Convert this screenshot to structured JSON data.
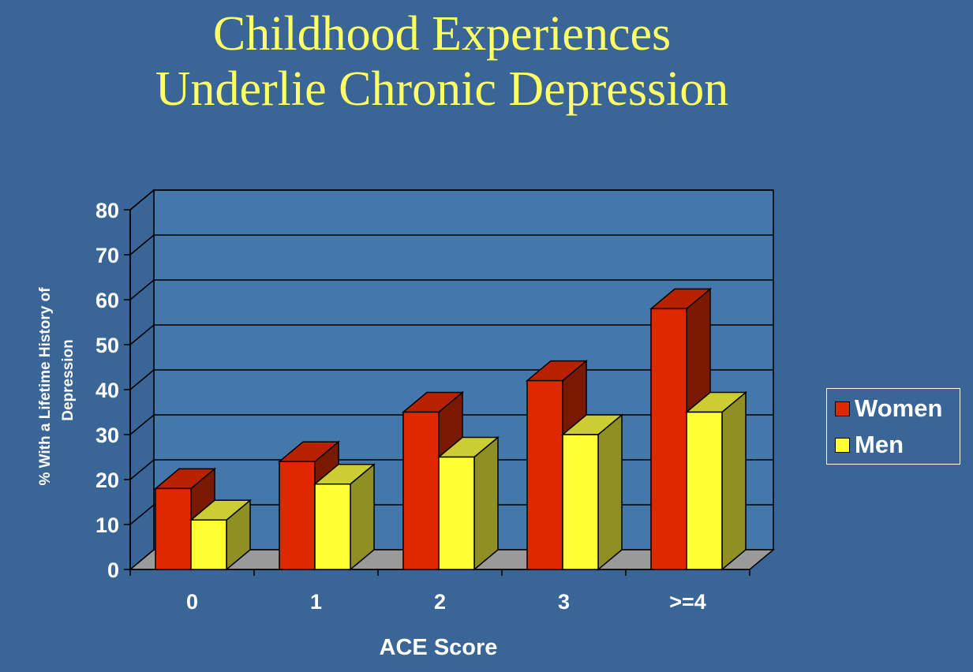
{
  "title": {
    "line1": "Childhood Experiences",
    "line2": "Underlie Chronic Depression"
  },
  "chart_data": {
    "type": "bar",
    "title": "Childhood Experiences Underlie Chronic Depression",
    "xlabel": "ACE Score",
    "ylabel_line1": "% With a Lifetime History of",
    "ylabel_line2": "Depression",
    "categories": [
      "0",
      "1",
      "2",
      "3",
      ">=4"
    ],
    "ylim": [
      0,
      80
    ],
    "yticks": [
      "0",
      "10",
      "20",
      "30",
      "40",
      "50",
      "60",
      "70",
      "80"
    ],
    "grid": true,
    "legend_position": "right",
    "series": [
      {
        "name": "Women",
        "values": [
          18,
          24,
          35,
          42,
          58
        ],
        "color": "#e02800",
        "top_color": "#b82200",
        "side_color": "#7a1800"
      },
      {
        "name": "Men",
        "values": [
          11,
          19,
          25,
          30,
          35
        ],
        "color": "#ffff33",
        "top_color": "#cccc33",
        "side_color": "#8f8f24"
      }
    ],
    "wall_color": "#4478aa",
    "floor_color": "#9a9a9a"
  }
}
